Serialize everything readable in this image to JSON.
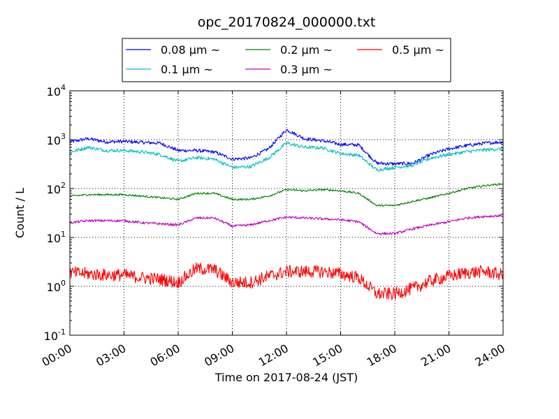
{
  "chart_data": {
    "type": "line",
    "title": "opc_20170824_000000.txt",
    "xlabel": "Time on 2017-08-24 (JST)",
    "ylabel": "Count / L",
    "xlim": [
      "00:00",
      "24:00"
    ],
    "ylim": [
      0.1,
      10000
    ],
    "yscale": "log",
    "grid": true,
    "legend_position": "top, outside plot",
    "x_ticks": [
      "00:00",
      "03:00",
      "06:00",
      "09:00",
      "12:00",
      "15:00",
      "18:00",
      "21:00",
      "24:00"
    ],
    "y_ticks": [
      {
        "base": "10",
        "exp": "-1"
      },
      {
        "base": "10",
        "exp": "0"
      },
      {
        "base": "10",
        "exp": "1"
      },
      {
        "base": "10",
        "exp": "2"
      },
      {
        "base": "10",
        "exp": "3"
      },
      {
        "base": "10",
        "exp": "4"
      }
    ],
    "x": [
      "00:00",
      "01:00",
      "02:00",
      "03:00",
      "04:00",
      "05:00",
      "06:00",
      "07:00",
      "08:00",
      "09:00",
      "10:00",
      "11:00",
      "12:00",
      "13:00",
      "14:00",
      "15:00",
      "16:00",
      "17:00",
      "18:00",
      "19:00",
      "20:00",
      "21:00",
      "22:00",
      "23:00",
      "24:00"
    ],
    "series": [
      {
        "name": "0.08 μm ~",
        "color": "#0000ff",
        "values": [
          900,
          1050,
          900,
          920,
          880,
          850,
          600,
          600,
          560,
          400,
          420,
          650,
          1600,
          1050,
          950,
          800,
          780,
          330,
          320,
          330,
          500,
          650,
          760,
          850,
          900
        ]
      },
      {
        "name": "0.1 μm ~",
        "color": "#00bfbf",
        "values": [
          550,
          700,
          600,
          600,
          560,
          500,
          360,
          430,
          400,
          270,
          280,
          420,
          850,
          700,
          680,
          520,
          480,
          240,
          270,
          300,
          420,
          500,
          570,
          620,
          650
        ]
      },
      {
        "name": "0.2 μm ~",
        "color": "#008000",
        "values": [
          70,
          75,
          75,
          75,
          70,
          65,
          60,
          80,
          80,
          60,
          60,
          70,
          95,
          90,
          95,
          90,
          80,
          45,
          45,
          55,
          65,
          80,
          100,
          115,
          125
        ]
      },
      {
        "name": "0.3 μm ~",
        "color": "#bf00bf",
        "values": [
          20,
          22,
          22,
          22,
          20,
          19,
          18,
          25,
          25,
          17,
          18,
          22,
          26,
          25,
          24,
          23,
          21,
          12,
          12,
          15,
          18,
          21,
          25,
          27,
          28
        ]
      },
      {
        "name": "0.5 μm ~",
        "color": "#ff0000",
        "values": [
          1.9,
          1.8,
          1.7,
          1.7,
          1.5,
          1.4,
          1.2,
          2.3,
          2.2,
          1.2,
          1.2,
          1.6,
          2.0,
          2.0,
          2.0,
          1.8,
          1.5,
          0.7,
          0.7,
          0.9,
          1.3,
          1.6,
          1.9,
          2.0,
          1.7
        ]
      }
    ]
  }
}
